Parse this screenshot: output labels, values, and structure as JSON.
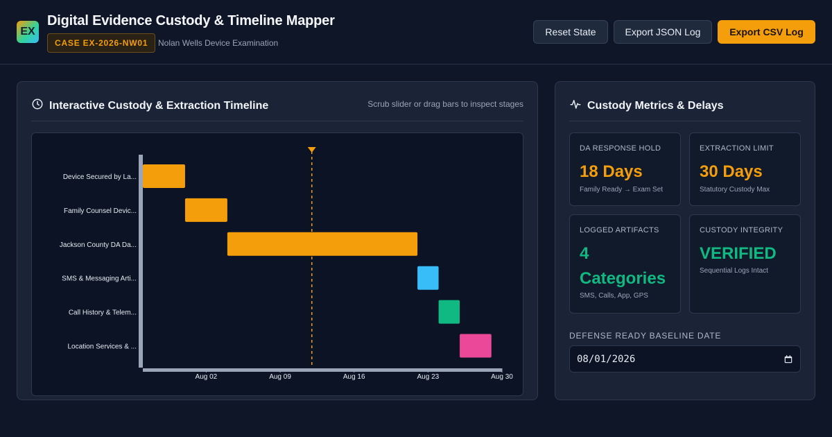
{
  "header": {
    "logo_text": "EX",
    "title": "Digital Evidence Custody & Timeline Mapper",
    "case_id": "CASE EX-2026-NW01",
    "case_subtitle": "Nolan Wells Device Examination",
    "buttons": {
      "reset": "Reset State",
      "export_json": "Export JSON Log",
      "export_csv": "Export CSV Log"
    }
  },
  "timeline_panel": {
    "title": "Interactive Custody & Extraction Timeline",
    "hint": "Scrub slider or drag bars to inspect stages"
  },
  "chart_data": {
    "type": "gantt",
    "x_ticks": [
      "Aug 02",
      "Aug 09",
      "Aug 16",
      "Aug 23",
      "Aug 30"
    ],
    "xlim": [
      "2026-07-27",
      "2026-08-30"
    ],
    "cursor_date": "2026-08-12",
    "tasks": [
      {
        "label": "Device Secured by La...",
        "start": "2026-07-27",
        "end": "2026-07-31",
        "color": "#f59e0b"
      },
      {
        "label": "Family Counsel Devic...",
        "start": "2026-07-31",
        "end": "2026-08-04",
        "color": "#f59e0b"
      },
      {
        "label": "Jackson County DA Da...",
        "start": "2026-08-04",
        "end": "2026-08-22",
        "color": "#f59e0b"
      },
      {
        "label": "SMS & Messaging Arti...",
        "start": "2026-08-22",
        "end": "2026-08-24",
        "color": "#38bdf8"
      },
      {
        "label": "Call History & Telem...",
        "start": "2026-08-24",
        "end": "2026-08-26",
        "color": "#10b981"
      },
      {
        "label": "Location Services & ...",
        "start": "2026-08-26",
        "end": "2026-08-29",
        "color": "#ec4899"
      }
    ]
  },
  "metrics_panel": {
    "title": "Custody Metrics & Delays",
    "cards": [
      {
        "label": "DA Response Hold",
        "value": "18 Days",
        "note": "Family Ready → Exam Set",
        "tone": "amber"
      },
      {
        "label": "Extraction Limit",
        "value": "30 Days",
        "note": "Statutory Custody Max",
        "tone": "amber"
      },
      {
        "label": "Logged Artifacts",
        "value": "4 Categories",
        "note": "SMS, Calls, App, GPS",
        "tone": "green"
      },
      {
        "label": "Custody Integrity",
        "value": "VERIFIED",
        "note": "Sequential Logs Intact",
        "tone": "green"
      }
    ],
    "baseline": {
      "label": "Defense Ready Baseline Date",
      "value": "08/01/2026"
    }
  }
}
